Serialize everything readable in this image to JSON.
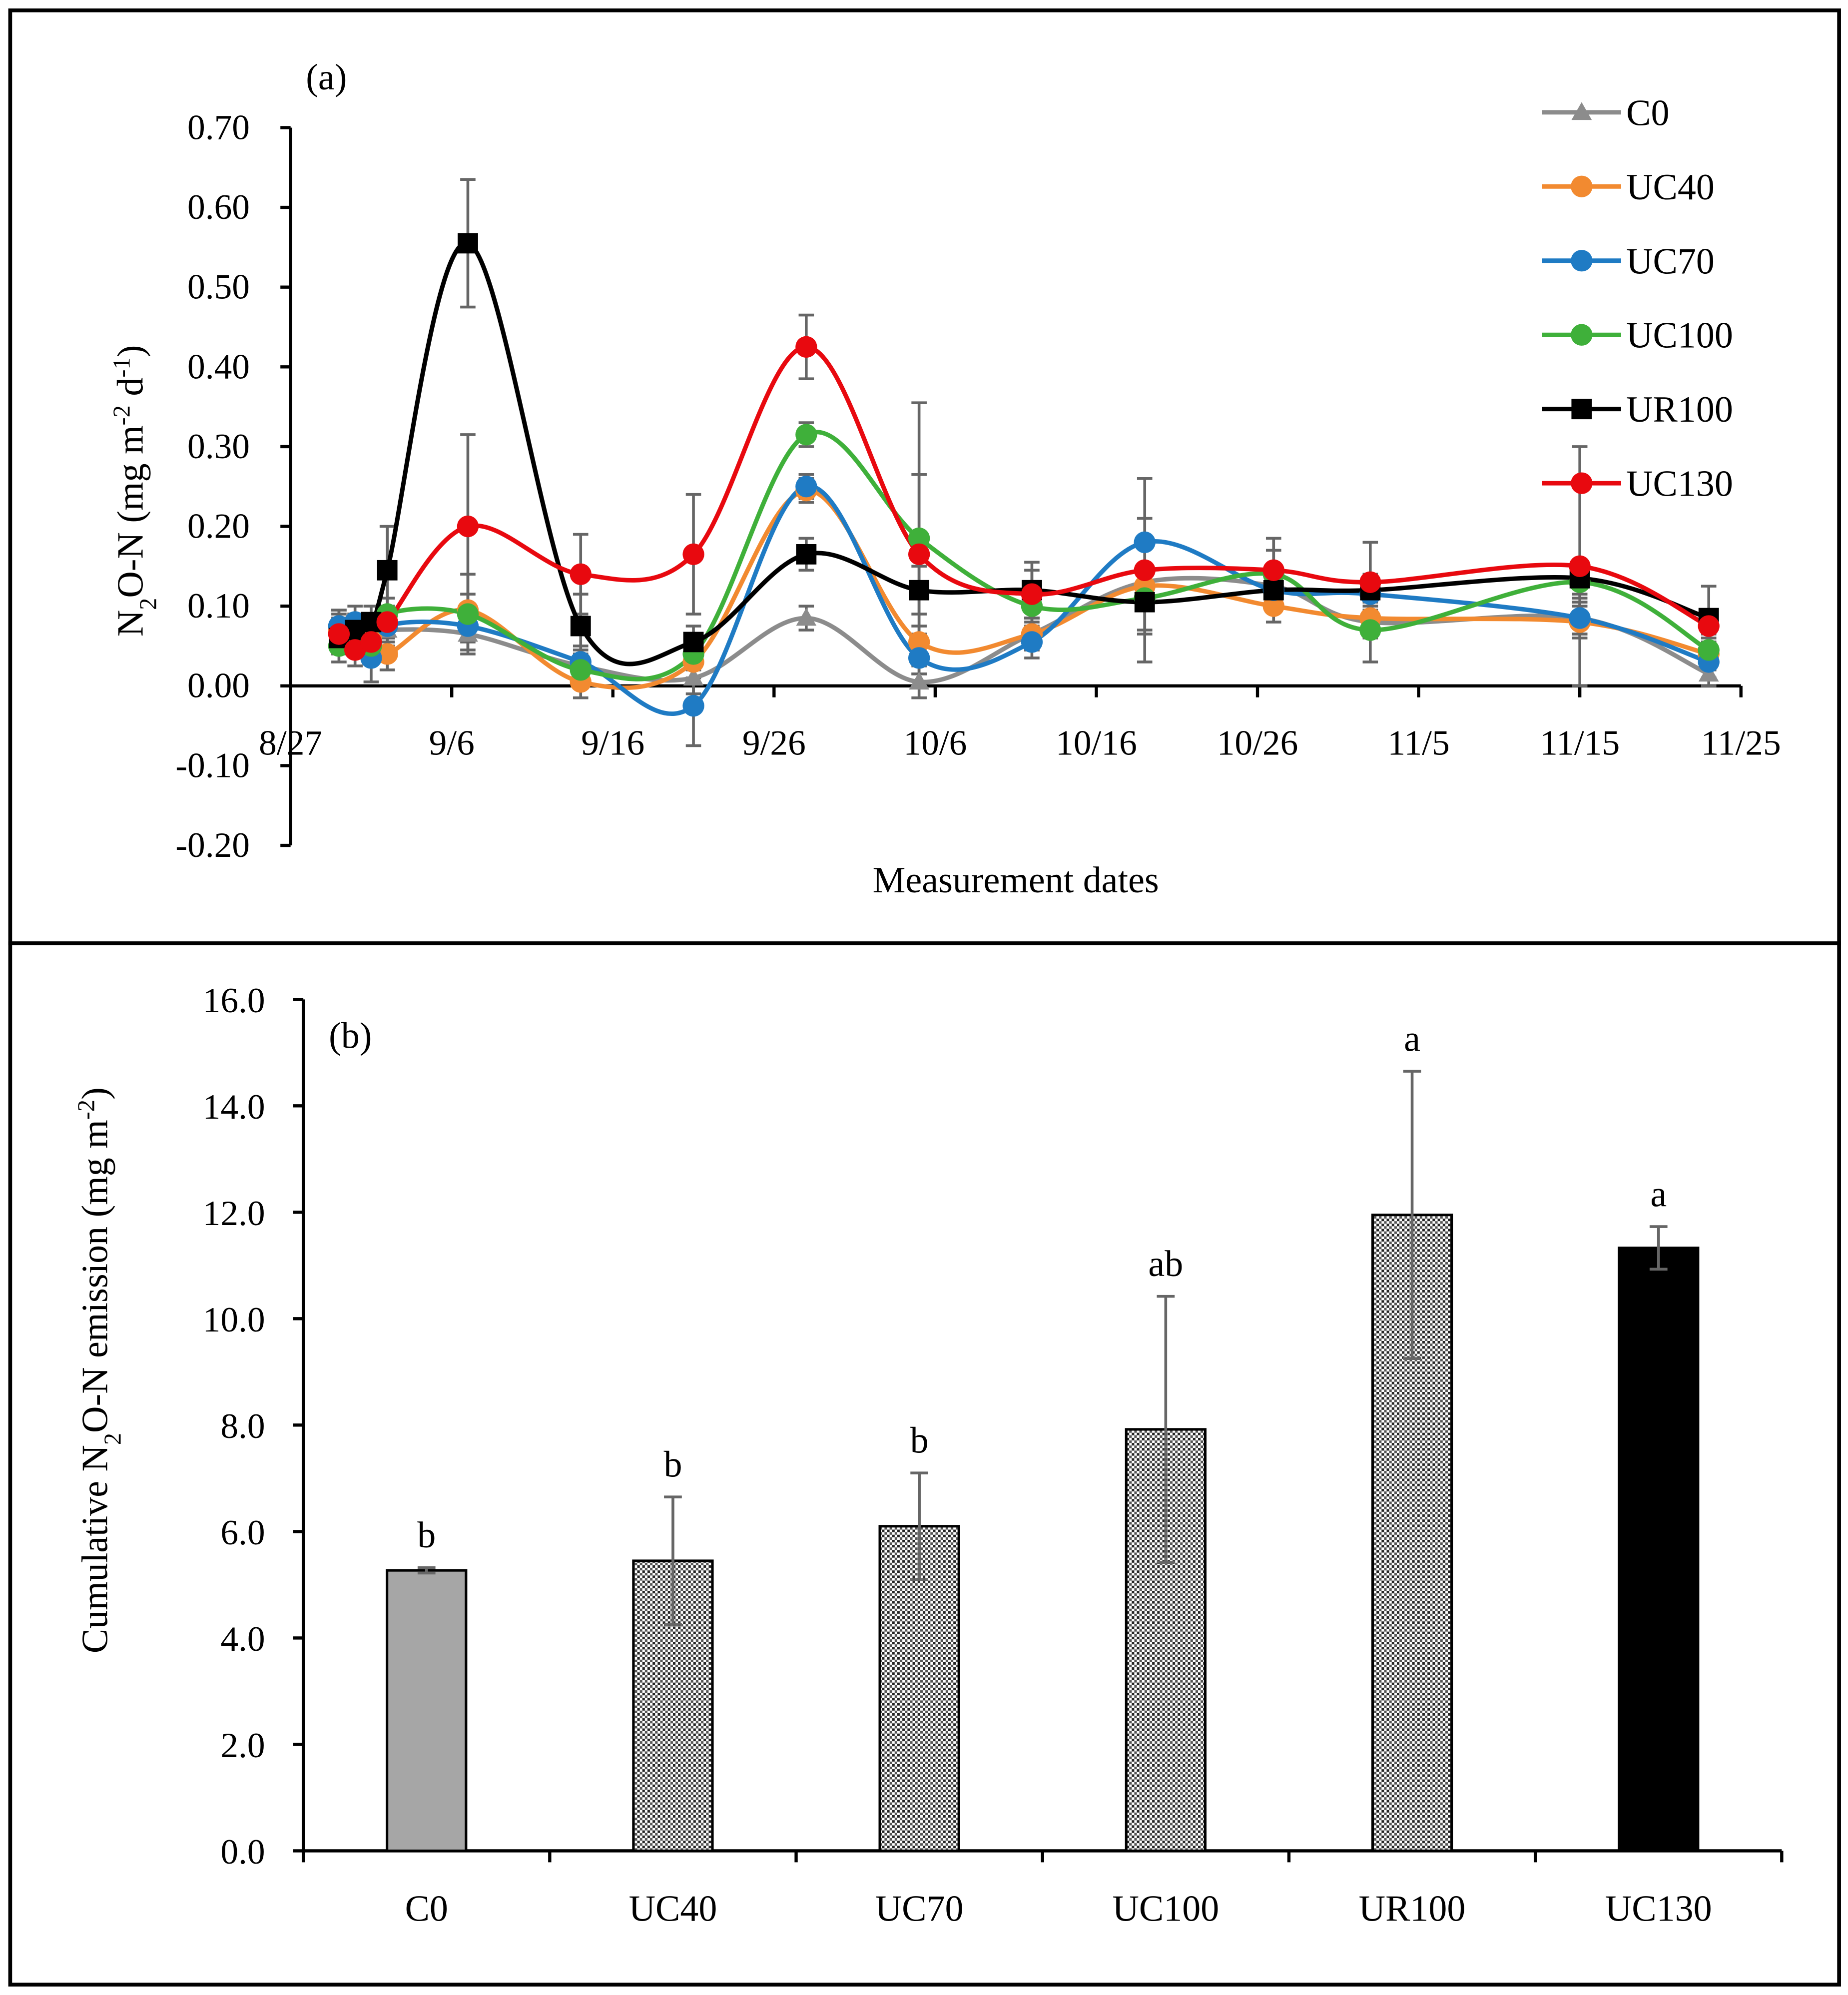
{
  "chart_data": [
    {
      "type": "line",
      "panel_label": "(a)",
      "title": "",
      "xlabel": "Measurement dates",
      "ylabel": "N2O-N (mg m-2 d-1)",
      "ylabel_parts": {
        "a": "N",
        "sub": "2",
        "b": "O-N (mg m",
        "sup1": "-2",
        "c": " d",
        "sup2": "-1",
        "d": ")"
      },
      "x_unit": "days after 8/27",
      "xlim": [
        0,
        90
      ],
      "x_ticks": [
        0,
        10,
        20,
        30,
        40,
        50,
        60,
        70,
        80,
        90
      ],
      "x_tick_labels": [
        "8/27",
        "9/6",
        "9/16",
        "9/26",
        "10/6",
        "10/16",
        "10/26",
        "11/5",
        "11/15",
        "11/25"
      ],
      "ylim": [
        -0.2,
        0.7
      ],
      "y_ticks": [
        -0.2,
        -0.1,
        0.0,
        0.1,
        0.2,
        0.3,
        0.4,
        0.5,
        0.6,
        0.7
      ],
      "y_tick_labels": [
        "-0.20",
        "-0.10",
        "0.00",
        "0.10",
        "0.20",
        "0.30",
        "0.40",
        "0.50",
        "0.60",
        "0.70"
      ],
      "legend_position": "top-right",
      "grid": false,
      "x": [
        3,
        4,
        5,
        6,
        11,
        18,
        25,
        32,
        39,
        46,
        53,
        61,
        67,
        80,
        88
      ],
      "series": [
        {
          "name": "C0",
          "color": "#8c8c8c",
          "marker": "triangle",
          "values": [
            0.075,
            0.07,
            0.06,
            0.07,
            0.065,
            0.025,
            0.01,
            0.085,
            0.005,
            0.065,
            0.13,
            0.125,
            0.08,
            0.085,
            0.015
          ],
          "err": [
            0.02,
            0.02,
            0.02,
            0.02,
            0.02,
            0.02,
            0.02,
            0.015,
            0.02,
            0.02,
            0.02,
            0.02,
            0.02,
            0.02,
            0.015
          ]
        },
        {
          "name": "UC40",
          "color": "#f28a30",
          "marker": "circle",
          "values": [
            0.07,
            0.065,
            0.06,
            0.04,
            0.095,
            0.005,
            0.03,
            0.245,
            0.055,
            0.065,
            0.125,
            0.1,
            0.085,
            0.08,
            0.04
          ],
          "err": [
            0.02,
            0.02,
            0.02,
            0.02,
            0.02,
            0.02,
            0.02,
            0.015,
            0.02,
            0.02,
            0.02,
            0.02,
            0.02,
            0.02,
            0.02
          ]
        },
        {
          "name": "UC70",
          "color": "#1f7bc4",
          "marker": "circle",
          "values": [
            0.075,
            0.08,
            0.035,
            0.075,
            0.075,
            0.03,
            -0.025,
            0.25,
            0.035,
            0.055,
            0.18,
            0.12,
            0.115,
            0.085,
            0.03
          ],
          "err": [
            0.02,
            0.02,
            0.03,
            0.02,
            0.02,
            0.02,
            0.05,
            0.015,
            0.02,
            0.02,
            0.03,
            0.02,
            0.02,
            0.02,
            0.02
          ]
        },
        {
          "name": "UC100",
          "color": "#3fb03a",
          "marker": "circle",
          "values": [
            0.05,
            0.06,
            0.05,
            0.09,
            0.09,
            0.02,
            0.04,
            0.315,
            0.185,
            0.1,
            0.11,
            0.14,
            0.07,
            0.13,
            0.045
          ],
          "err": [
            0.02,
            0.02,
            0.02,
            0.02,
            0.05,
            0.02,
            0.02,
            0.015,
            0.17,
            0.02,
            0.04,
            0.03,
            0.04,
            0.02,
            0.02
          ]
        },
        {
          "name": "UR100",
          "color": "#000000",
          "marker": "square",
          "values": [
            0.06,
            0.07,
            0.08,
            0.145,
            0.555,
            0.075,
            0.055,
            0.165,
            0.12,
            0.12,
            0.105,
            0.12,
            0.12,
            0.135,
            0.085
          ],
          "err": [
            0.02,
            0.02,
            0.02,
            0.055,
            0.08,
            0.04,
            0.02,
            0.02,
            0.03,
            0.035,
            0.04,
            0.02,
            0.02,
            0.02,
            0.04
          ]
        },
        {
          "name": "UC130",
          "color": "#e8090f",
          "marker": "circle",
          "values": [
            0.065,
            0.045,
            0.055,
            0.08,
            0.2,
            0.14,
            0.165,
            0.425,
            0.165,
            0.115,
            0.145,
            0.145,
            0.13,
            0.15,
            0.075
          ],
          "err": [
            0.02,
            0.02,
            0.02,
            0.02,
            0.115,
            0.05,
            0.075,
            0.04,
            0.1,
            0.03,
            0.115,
            0.04,
            0.05,
            0.15,
            0.02
          ]
        }
      ]
    },
    {
      "type": "bar",
      "panel_label": "(b)",
      "title": "",
      "xlabel": "",
      "ylabel": "Cumulative N2O-N emission (mg m-2)",
      "ylabel_parts": {
        "a": "Cumulative N",
        "sub": "2",
        "b": "O-N emission (mg m",
        "sup1": "-2",
        "c": ")"
      },
      "ylim": [
        0,
        16
      ],
      "y_ticks": [
        0,
        2,
        4,
        6,
        8,
        10,
        12,
        14,
        16
      ],
      "y_tick_labels": [
        "0.0",
        "2.0",
        "4.0",
        "6.0",
        "8.0",
        "10.0",
        "12.0",
        "14.0",
        "16.0"
      ],
      "grid": false,
      "categories": [
        "C0",
        "UC40",
        "UC70",
        "UC100",
        "UR100",
        "UC130"
      ],
      "values": [
        5.27,
        5.45,
        6.1,
        7.92,
        11.95,
        11.33
      ],
      "err": [
        0.05,
        1.2,
        1.0,
        2.5,
        2.7,
        0.4
      ],
      "significance_letters": [
        "b",
        "b",
        "b",
        "ab",
        "a",
        "a"
      ],
      "fills": [
        "solid-gray",
        "dotted",
        "dotted",
        "dotted",
        "dotted",
        "solid-black"
      ],
      "colors": {
        "gray": "#a6a6a6",
        "black": "#000000",
        "error": "#666666"
      }
    }
  ]
}
